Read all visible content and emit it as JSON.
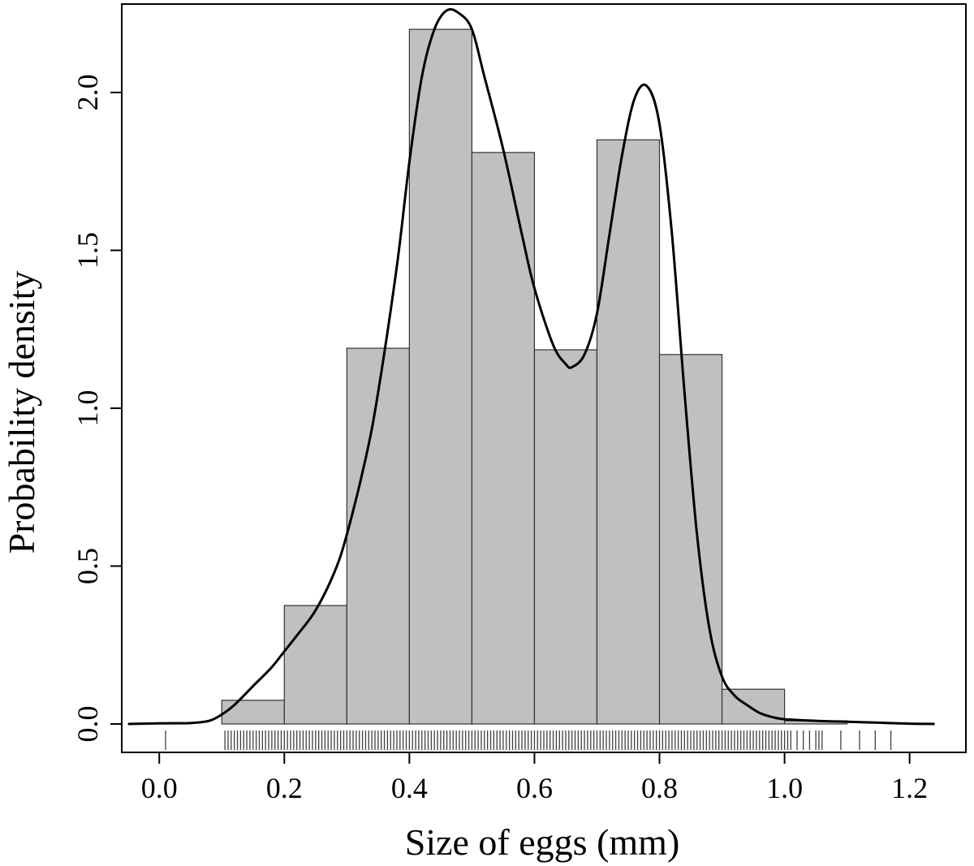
{
  "chart_data": {
    "type": "histogram",
    "xlabel": "Size of eggs (mm)",
    "ylabel": "Probability density",
    "xlim": [
      -0.06,
      1.29
    ],
    "ylim": [
      -0.09,
      2.28
    ],
    "x_ticks": [
      0.0,
      0.2,
      0.4,
      0.6,
      0.8,
      1.0,
      1.2
    ],
    "x_tick_labels": [
      "0.0",
      "0.2",
      "0.4",
      "0.6",
      "0.8",
      "1.0",
      "1.2"
    ],
    "y_ticks": [
      0.0,
      0.5,
      1.0,
      1.5,
      2.0
    ],
    "y_tick_labels": [
      "0.0",
      "0.5",
      "1.0",
      "1.5",
      "2.0"
    ],
    "bins": [
      {
        "x0": 0.1,
        "x1": 0.2,
        "density": 0.075
      },
      {
        "x0": 0.2,
        "x1": 0.3,
        "density": 0.375
      },
      {
        "x0": 0.3,
        "x1": 0.4,
        "density": 1.19
      },
      {
        "x0": 0.4,
        "x1": 0.5,
        "density": 2.2
      },
      {
        "x0": 0.5,
        "x1": 0.6,
        "density": 1.81
      },
      {
        "x0": 0.6,
        "x1": 0.7,
        "density": 1.185
      },
      {
        "x0": 0.7,
        "x1": 0.8,
        "density": 1.85
      },
      {
        "x0": 0.8,
        "x1": 0.9,
        "density": 1.17
      },
      {
        "x0": 0.9,
        "x1": 1.0,
        "density": 0.11
      },
      {
        "x0": 1.0,
        "x1": 1.1,
        "density": 0.01
      }
    ],
    "density_curve": {
      "x": [
        -0.05,
        0.0,
        0.05,
        0.08,
        0.1,
        0.12,
        0.15,
        0.18,
        0.2,
        0.22,
        0.25,
        0.28,
        0.3,
        0.33,
        0.35,
        0.38,
        0.4,
        0.42,
        0.44,
        0.46,
        0.48,
        0.5,
        0.52,
        0.55,
        0.58,
        0.6,
        0.63,
        0.65,
        0.66,
        0.68,
        0.7,
        0.72,
        0.74,
        0.76,
        0.78,
        0.8,
        0.82,
        0.84,
        0.86,
        0.88,
        0.9,
        0.92,
        0.94,
        0.96,
        0.98,
        1.0,
        1.05,
        1.1,
        1.15,
        1.2,
        1.24
      ],
      "y": [
        0.0,
        0.002,
        0.003,
        0.01,
        0.03,
        0.06,
        0.12,
        0.18,
        0.23,
        0.28,
        0.36,
        0.48,
        0.6,
        0.84,
        1.05,
        1.45,
        1.78,
        2.05,
        2.2,
        2.26,
        2.25,
        2.2,
        2.05,
        1.82,
        1.55,
        1.38,
        1.2,
        1.14,
        1.13,
        1.17,
        1.3,
        1.55,
        1.8,
        1.98,
        2.02,
        1.9,
        1.55,
        1.05,
        0.6,
        0.3,
        0.15,
        0.09,
        0.06,
        0.035,
        0.022,
        0.015,
        0.01,
        0.007,
        0.004,
        0.001,
        0.0
      ]
    },
    "rug": {
      "solid_from": 0.135,
      "solid_to": 0.965,
      "solid_step": 0.005,
      "extra": [
        0.01,
        0.105,
        0.11,
        0.115,
        0.12,
        0.125,
        0.13,
        0.97,
        0.975,
        0.98,
        0.985,
        0.99,
        0.995,
        1.0,
        1.005,
        1.01,
        1.02,
        1.03,
        1.04,
        1.05,
        1.055,
        1.06,
        1.09,
        1.12,
        1.145,
        1.17
      ]
    },
    "grid": false,
    "legend": "none"
  }
}
